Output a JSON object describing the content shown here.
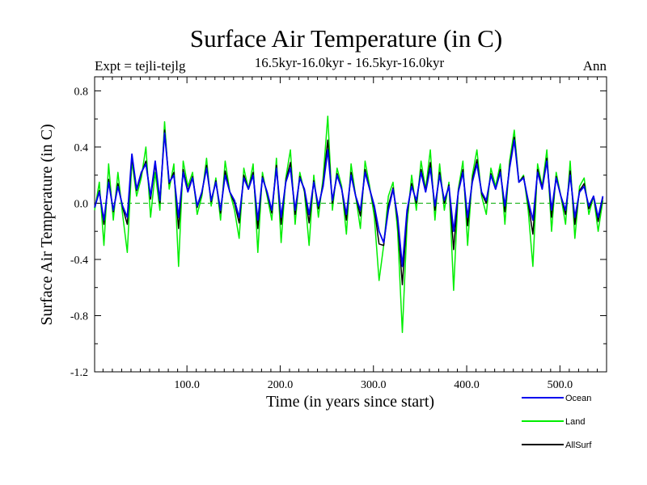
{
  "chart_data": {
    "type": "line",
    "title": "Surface Air Temperature (in C)",
    "expt_label": "Expt = tejli-tejlg",
    "subtitle": "16.5kyr-16.0kyr - 16.5kyr-16.0kyr",
    "period_label": "Ann",
    "xlabel": "Time (in years since start)",
    "ylabel": "Surface Air Temperature (in C)",
    "xlim": [
      1,
      550
    ],
    "ylim": [
      -1.2,
      0.9
    ],
    "x_ticks": [
      100,
      200,
      300,
      400,
      500
    ],
    "x_tick_labels": [
      "100.0",
      "200.0",
      "300.0",
      "400.0",
      "500.0"
    ],
    "y_ticks": [
      -1.2,
      -0.8,
      -0.4,
      0.0,
      0.4,
      0.8
    ],
    "y_tick_labels": [
      "-1.2",
      "-0.8",
      "-0.4",
      "0.0",
      "0.4",
      "0.8"
    ],
    "reference_line": 0.0,
    "x_sample_step": 5,
    "x_start": 1,
    "series": [
      {
        "name": "Land",
        "color": "#00ee00",
        "values": [
          -0.05,
          0.15,
          -0.3,
          0.28,
          -0.12,
          0.22,
          -0.08,
          -0.35,
          0.3,
          0.05,
          0.18,
          0.4,
          -0.1,
          0.22,
          -0.05,
          0.58,
          0.1,
          0.28,
          -0.45,
          0.3,
          0.12,
          0.22,
          -0.08,
          0.05,
          0.32,
          -0.02,
          0.18,
          -0.12,
          0.3,
          0.08,
          -0.05,
          -0.25,
          0.25,
          0.1,
          0.28,
          -0.35,
          0.22,
          0.05,
          -0.12,
          0.32,
          -0.28,
          0.18,
          0.38,
          -0.15,
          0.22,
          0.08,
          -0.3,
          0.2,
          -0.1,
          0.18,
          0.62,
          -0.05,
          0.25,
          0.12,
          -0.22,
          0.28,
          0.05,
          -0.18,
          0.3,
          0.12,
          -0.1,
          -0.55,
          -0.3,
          0.05,
          0.15,
          -0.2,
          -0.92,
          -0.15,
          0.2,
          -0.05,
          0.3,
          0.1,
          0.38,
          -0.12,
          0.28,
          -0.05,
          0.15,
          -0.62,
          0.1,
          0.3,
          -0.3,
          0.2,
          0.38,
          0.05,
          -0.08,
          0.25,
          0.12,
          0.28,
          -0.15,
          0.3,
          0.52,
          0.15,
          0.2,
          -0.05,
          -0.45,
          0.28,
          0.12,
          0.38,
          -0.2,
          0.22,
          0.05,
          -0.15,
          0.3,
          -0.25,
          0.12,
          0.18,
          -0.08,
          0.05,
          -0.2,
          0.02
        ]
      },
      {
        "name": "Ocean",
        "color": "#0000ee",
        "values": [
          -0.03,
          0.08,
          -0.12,
          0.15,
          -0.05,
          0.12,
          -0.02,
          -0.1,
          0.35,
          0.1,
          0.22,
          0.28,
          0.05,
          0.3,
          0.02,
          0.5,
          0.15,
          0.2,
          -0.1,
          0.22,
          0.08,
          0.18,
          -0.02,
          0.08,
          0.25,
          0.02,
          0.15,
          -0.05,
          0.2,
          0.08,
          0.02,
          -0.1,
          0.18,
          0.1,
          0.2,
          -0.12,
          0.18,
          0.08,
          -0.05,
          0.25,
          -0.1,
          0.15,
          0.25,
          -0.05,
          0.18,
          0.1,
          -0.08,
          0.15,
          -0.02,
          0.12,
          0.38,
          0.02,
          0.2,
          0.1,
          -0.08,
          0.2,
          0.05,
          -0.05,
          0.22,
          0.1,
          -0.02,
          -0.2,
          -0.28,
          -0.05,
          0.1,
          -0.1,
          -0.45,
          -0.05,
          0.12,
          0.02,
          0.22,
          0.08,
          0.25,
          -0.02,
          0.2,
          0.02,
          0.12,
          -0.2,
          0.08,
          0.22,
          -0.1,
          0.15,
          0.28,
          0.08,
          0.02,
          0.2,
          0.1,
          0.22,
          -0.02,
          0.25,
          0.45,
          0.15,
          0.18,
          0.02,
          -0.12,
          0.22,
          0.1,
          0.3,
          -0.05,
          0.18,
          0.05,
          -0.05,
          0.2,
          -0.1,
          0.08,
          0.12,
          -0.02,
          0.05,
          -0.1,
          0.05
        ]
      },
      {
        "name": "AllSurf",
        "color": "#000000",
        "values": [
          -0.03,
          0.09,
          -0.15,
          0.17,
          -0.06,
          0.14,
          -0.03,
          -0.15,
          0.33,
          0.09,
          0.21,
          0.3,
          0.03,
          0.28,
          0.0,
          0.52,
          0.14,
          0.22,
          -0.18,
          0.24,
          0.09,
          0.19,
          -0.03,
          0.07,
          0.27,
          0.01,
          0.16,
          -0.07,
          0.23,
          0.08,
          0.0,
          -0.14,
          0.2,
          0.1,
          0.22,
          -0.18,
          0.19,
          0.07,
          -0.07,
          0.27,
          -0.15,
          0.16,
          0.29,
          -0.08,
          0.19,
          0.09,
          -0.14,
          0.16,
          -0.04,
          0.14,
          0.45,
          0.0,
          0.21,
          0.1,
          -0.12,
          0.22,
          0.05,
          -0.09,
          0.24,
          0.1,
          -0.04,
          -0.29,
          -0.3,
          -0.02,
          0.11,
          -0.13,
          -0.58,
          -0.08,
          0.14,
          0.0,
          0.24,
          0.09,
          0.29,
          -0.05,
          0.22,
          0.0,
          0.13,
          -0.33,
          0.09,
          0.24,
          -0.16,
          0.17,
          0.31,
          0.07,
          0.0,
          0.21,
          0.1,
          0.24,
          -0.06,
          0.27,
          0.47,
          0.15,
          0.19,
          0.0,
          -0.22,
          0.24,
          0.11,
          0.32,
          -0.1,
          0.19,
          0.05,
          -0.08,
          0.23,
          -0.15,
          0.09,
          0.14,
          -0.04,
          0.05,
          -0.13,
          0.04
        ]
      }
    ]
  }
}
